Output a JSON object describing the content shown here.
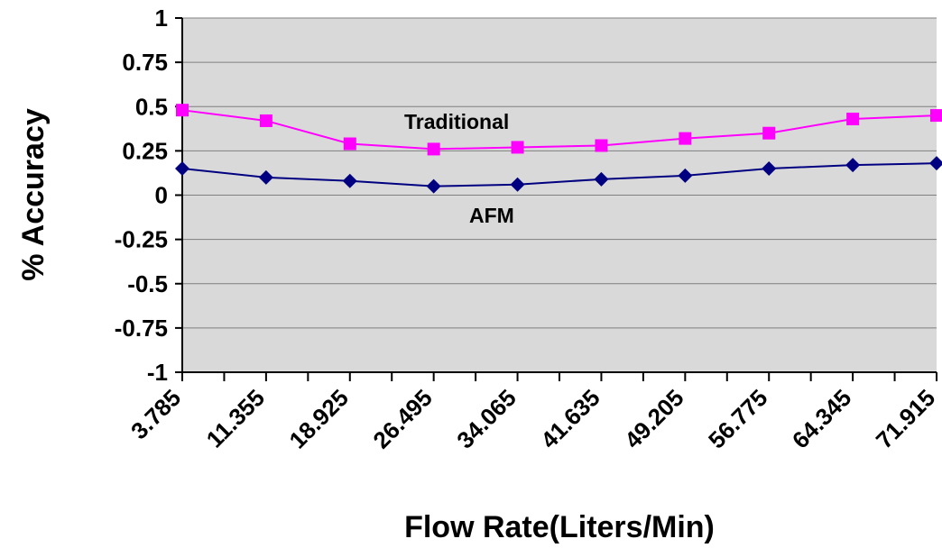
{
  "chart_data": {
    "type": "line",
    "title": "",
    "xlabel": "Flow Rate(Liters/Min)",
    "ylabel": "% Accuracy",
    "x": [
      "3.785",
      "11.355",
      "18.925",
      "26.495",
      "34.065",
      "41.635",
      "49.205",
      "56.775",
      "64.345",
      "71.915"
    ],
    "ylim": [
      -1,
      1
    ],
    "yticks": [
      "1",
      "0.75",
      "0.5",
      "0.25",
      "0",
      "-0.25",
      "-0.5",
      "-0.75",
      "-1"
    ],
    "grid": true,
    "plot_background": "#d9d9d9",
    "series": [
      {
        "name": "Traditional",
        "color": "#ff00ff",
        "marker": "square",
        "values": [
          0.48,
          0.42,
          0.29,
          0.26,
          0.27,
          0.28,
          0.32,
          0.35,
          0.43,
          0.45
        ]
      },
      {
        "name": "AFM",
        "color": "#000080",
        "marker": "diamond",
        "values": [
          0.15,
          0.1,
          0.08,
          0.05,
          0.06,
          0.09,
          0.11,
          0.15,
          0.17,
          0.18
        ]
      }
    ]
  }
}
